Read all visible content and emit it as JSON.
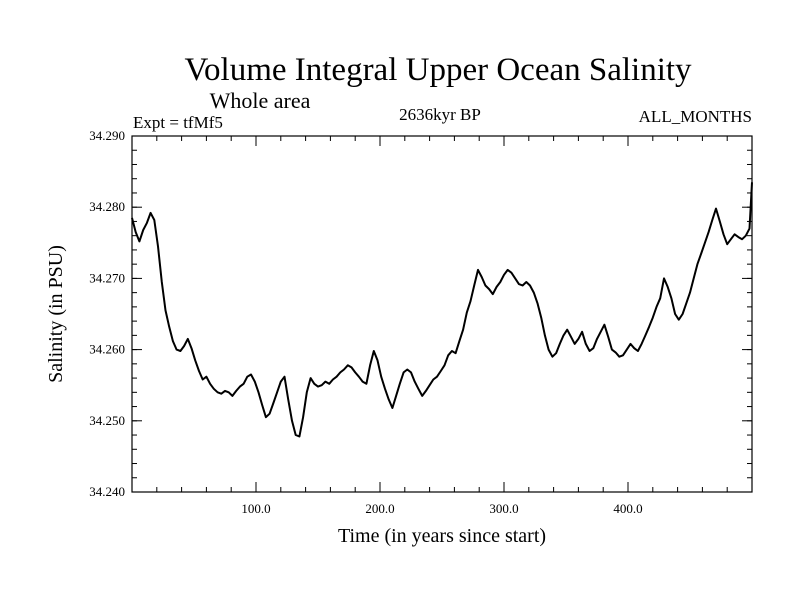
{
  "chart_data": {
    "type": "line",
    "title": "Volume Integral Upper Ocean Salinity",
    "subtitle": "Whole area",
    "experiment_label": "Expt = tfMf5",
    "period_label": "2636kyr BP",
    "months_label": "ALL_MONTHS",
    "xlabel": "Time (in years since start)",
    "ylabel": "Salinity (in PSU)",
    "xlim": [
      0,
      500
    ],
    "ylim": [
      34.24,
      34.29
    ],
    "x_ticks": [
      100,
      200,
      300,
      400
    ],
    "x_tick_labels": [
      "100.0",
      "200.0",
      "300.0",
      "400.0"
    ],
    "y_ticks": [
      34.24,
      34.25,
      34.26,
      34.27,
      34.28,
      34.29
    ],
    "y_tick_labels": [
      "34.240",
      "34.250",
      "34.260",
      "34.270",
      "34.280",
      "34.290"
    ],
    "grid": false,
    "series": [
      {
        "name": "Salinity",
        "color": "#000000",
        "x": [
          0,
          3,
          6,
          9,
          12,
          15,
          18,
          21,
          24,
          27,
          30,
          33,
          36,
          39,
          42,
          45,
          48,
          51,
          54,
          57,
          60,
          63,
          66,
          69,
          72,
          75,
          78,
          81,
          84,
          87,
          90,
          93,
          96,
          99,
          102,
          105,
          108,
          111,
          114,
          117,
          120,
          123,
          126,
          129,
          132,
          135,
          138,
          141,
          144,
          147,
          150,
          153,
          156,
          159,
          162,
          165,
          168,
          171,
          174,
          177,
          180,
          183,
          186,
          189,
          192,
          195,
          198,
          201,
          204,
          207,
          210,
          213,
          216,
          219,
          222,
          225,
          228,
          231,
          234,
          237,
          240,
          243,
          246,
          249,
          252,
          255,
          258,
          261,
          264,
          267,
          270,
          273,
          276,
          279,
          282,
          285,
          288,
          291,
          294,
          297,
          300,
          303,
          306,
          309,
          312,
          315,
          318,
          321,
          324,
          327,
          330,
          333,
          336,
          339,
          342,
          345,
          348,
          351,
          354,
          357,
          360,
          363,
          366,
          369,
          372,
          375,
          378,
          381,
          384,
          387,
          390,
          393,
          396,
          399,
          402,
          405,
          408,
          411,
          414,
          417,
          420,
          423,
          426,
          429,
          432,
          435,
          438,
          441,
          444,
          447,
          450,
          453,
          456,
          459,
          462,
          465,
          468,
          471,
          474,
          477,
          480,
          483,
          486,
          489,
          492,
          495,
          498,
          500
        ],
        "y": [
          34.2785,
          34.2765,
          34.2752,
          34.2768,
          34.2778,
          34.2792,
          34.2782,
          34.2745,
          34.2695,
          34.2655,
          34.2632,
          34.2612,
          34.26,
          34.2598,
          34.2605,
          34.2615,
          34.2602,
          34.2585,
          34.257,
          34.2558,
          34.2562,
          34.2552,
          34.2545,
          34.254,
          34.2538,
          34.2542,
          34.254,
          34.2535,
          34.2542,
          34.2548,
          34.2552,
          34.2562,
          34.2565,
          34.2555,
          34.254,
          34.2522,
          34.2505,
          34.251,
          34.2525,
          34.254,
          34.2555,
          34.2562,
          34.253,
          34.25,
          34.248,
          34.2478,
          34.2505,
          34.254,
          34.256,
          34.2552,
          34.2548,
          34.255,
          34.2555,
          34.2552,
          34.2558,
          34.2562,
          34.2568,
          34.2572,
          34.2578,
          34.2575,
          34.2568,
          34.2562,
          34.2555,
          34.2552,
          34.2578,
          34.2598,
          34.2585,
          34.2562,
          34.2545,
          34.253,
          34.2518,
          34.2535,
          34.2552,
          34.2568,
          34.2572,
          34.2568,
          34.2555,
          34.2545,
          34.2535,
          34.2542,
          34.255,
          34.2558,
          34.2562,
          34.257,
          34.2578,
          34.2592,
          34.2598,
          34.2595,
          34.2612,
          34.2628,
          34.2652,
          34.2668,
          34.269,
          34.2712,
          34.2702,
          34.269,
          34.2685,
          34.2678,
          34.2688,
          34.2695,
          34.2705,
          34.2712,
          34.2708,
          34.27,
          34.2692,
          34.269,
          34.2695,
          34.269,
          34.268,
          34.2665,
          34.2645,
          34.262,
          34.26,
          34.259,
          34.2595,
          34.2608,
          34.262,
          34.2628,
          34.2618,
          34.2608,
          34.2615,
          34.2625,
          34.2608,
          34.2598,
          34.2602,
          34.2615,
          34.2625,
          34.2635,
          34.2618,
          34.26,
          34.2596,
          34.259,
          34.2592,
          34.26,
          34.2608,
          34.2602,
          34.2598,
          34.2608,
          34.262,
          34.2632,
          34.2645,
          34.266,
          34.2672,
          34.27,
          34.2688,
          34.2672,
          34.265,
          34.2642,
          34.265,
          34.2665,
          34.268,
          34.27,
          34.272,
          34.2735,
          34.275,
          34.2765,
          34.2782,
          34.2798,
          34.278,
          34.2762,
          34.2748,
          34.2755,
          34.2762,
          34.2758,
          34.2755,
          34.276,
          34.277,
          34.2835
        ]
      }
    ]
  }
}
